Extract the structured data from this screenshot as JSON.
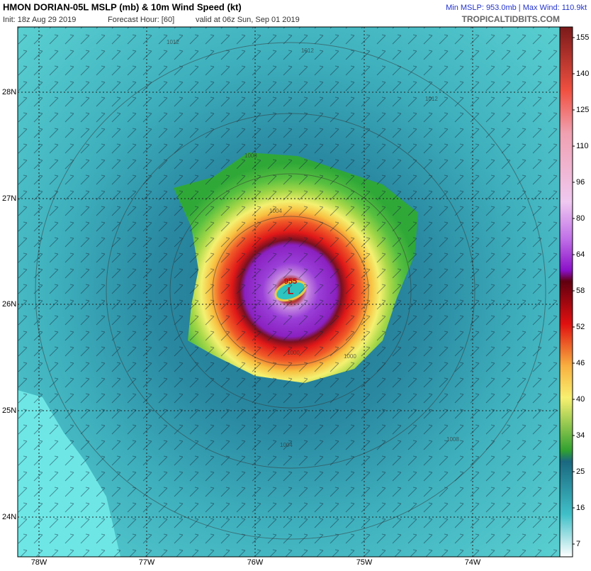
{
  "header": {
    "title": "HMON DORIAN-05L MSLP (mb) & 10m Wind Speed (kt)",
    "init": "Init: 18z Aug 29 2019",
    "forecast": "Forecast Hour: [60]",
    "valid": "valid at 06z Sun, Sep 01 2019",
    "stats": "Min MSLP: 953.0mb | Max Wind: 110.9kt",
    "site": "TROPICALTIDBITS.COM"
  },
  "map": {
    "lat_labels": [
      "28N",
      "27N",
      "26N",
      "25N",
      "24N"
    ],
    "lon_labels": [
      "78W",
      "77W",
      "76W",
      "75W",
      "74W"
    ],
    "center_label": "L",
    "center_pressure": "955",
    "contour_labels": [
      "1012",
      "1012",
      "1012",
      "1008",
      "1004",
      "1000",
      "1000",
      "1004",
      "1008"
    ]
  },
  "colorbar": {
    "ticks": [
      155,
      140,
      125,
      110,
      96,
      80,
      64,
      58,
      52,
      46,
      40,
      34,
      25,
      16,
      7
    ]
  }
}
